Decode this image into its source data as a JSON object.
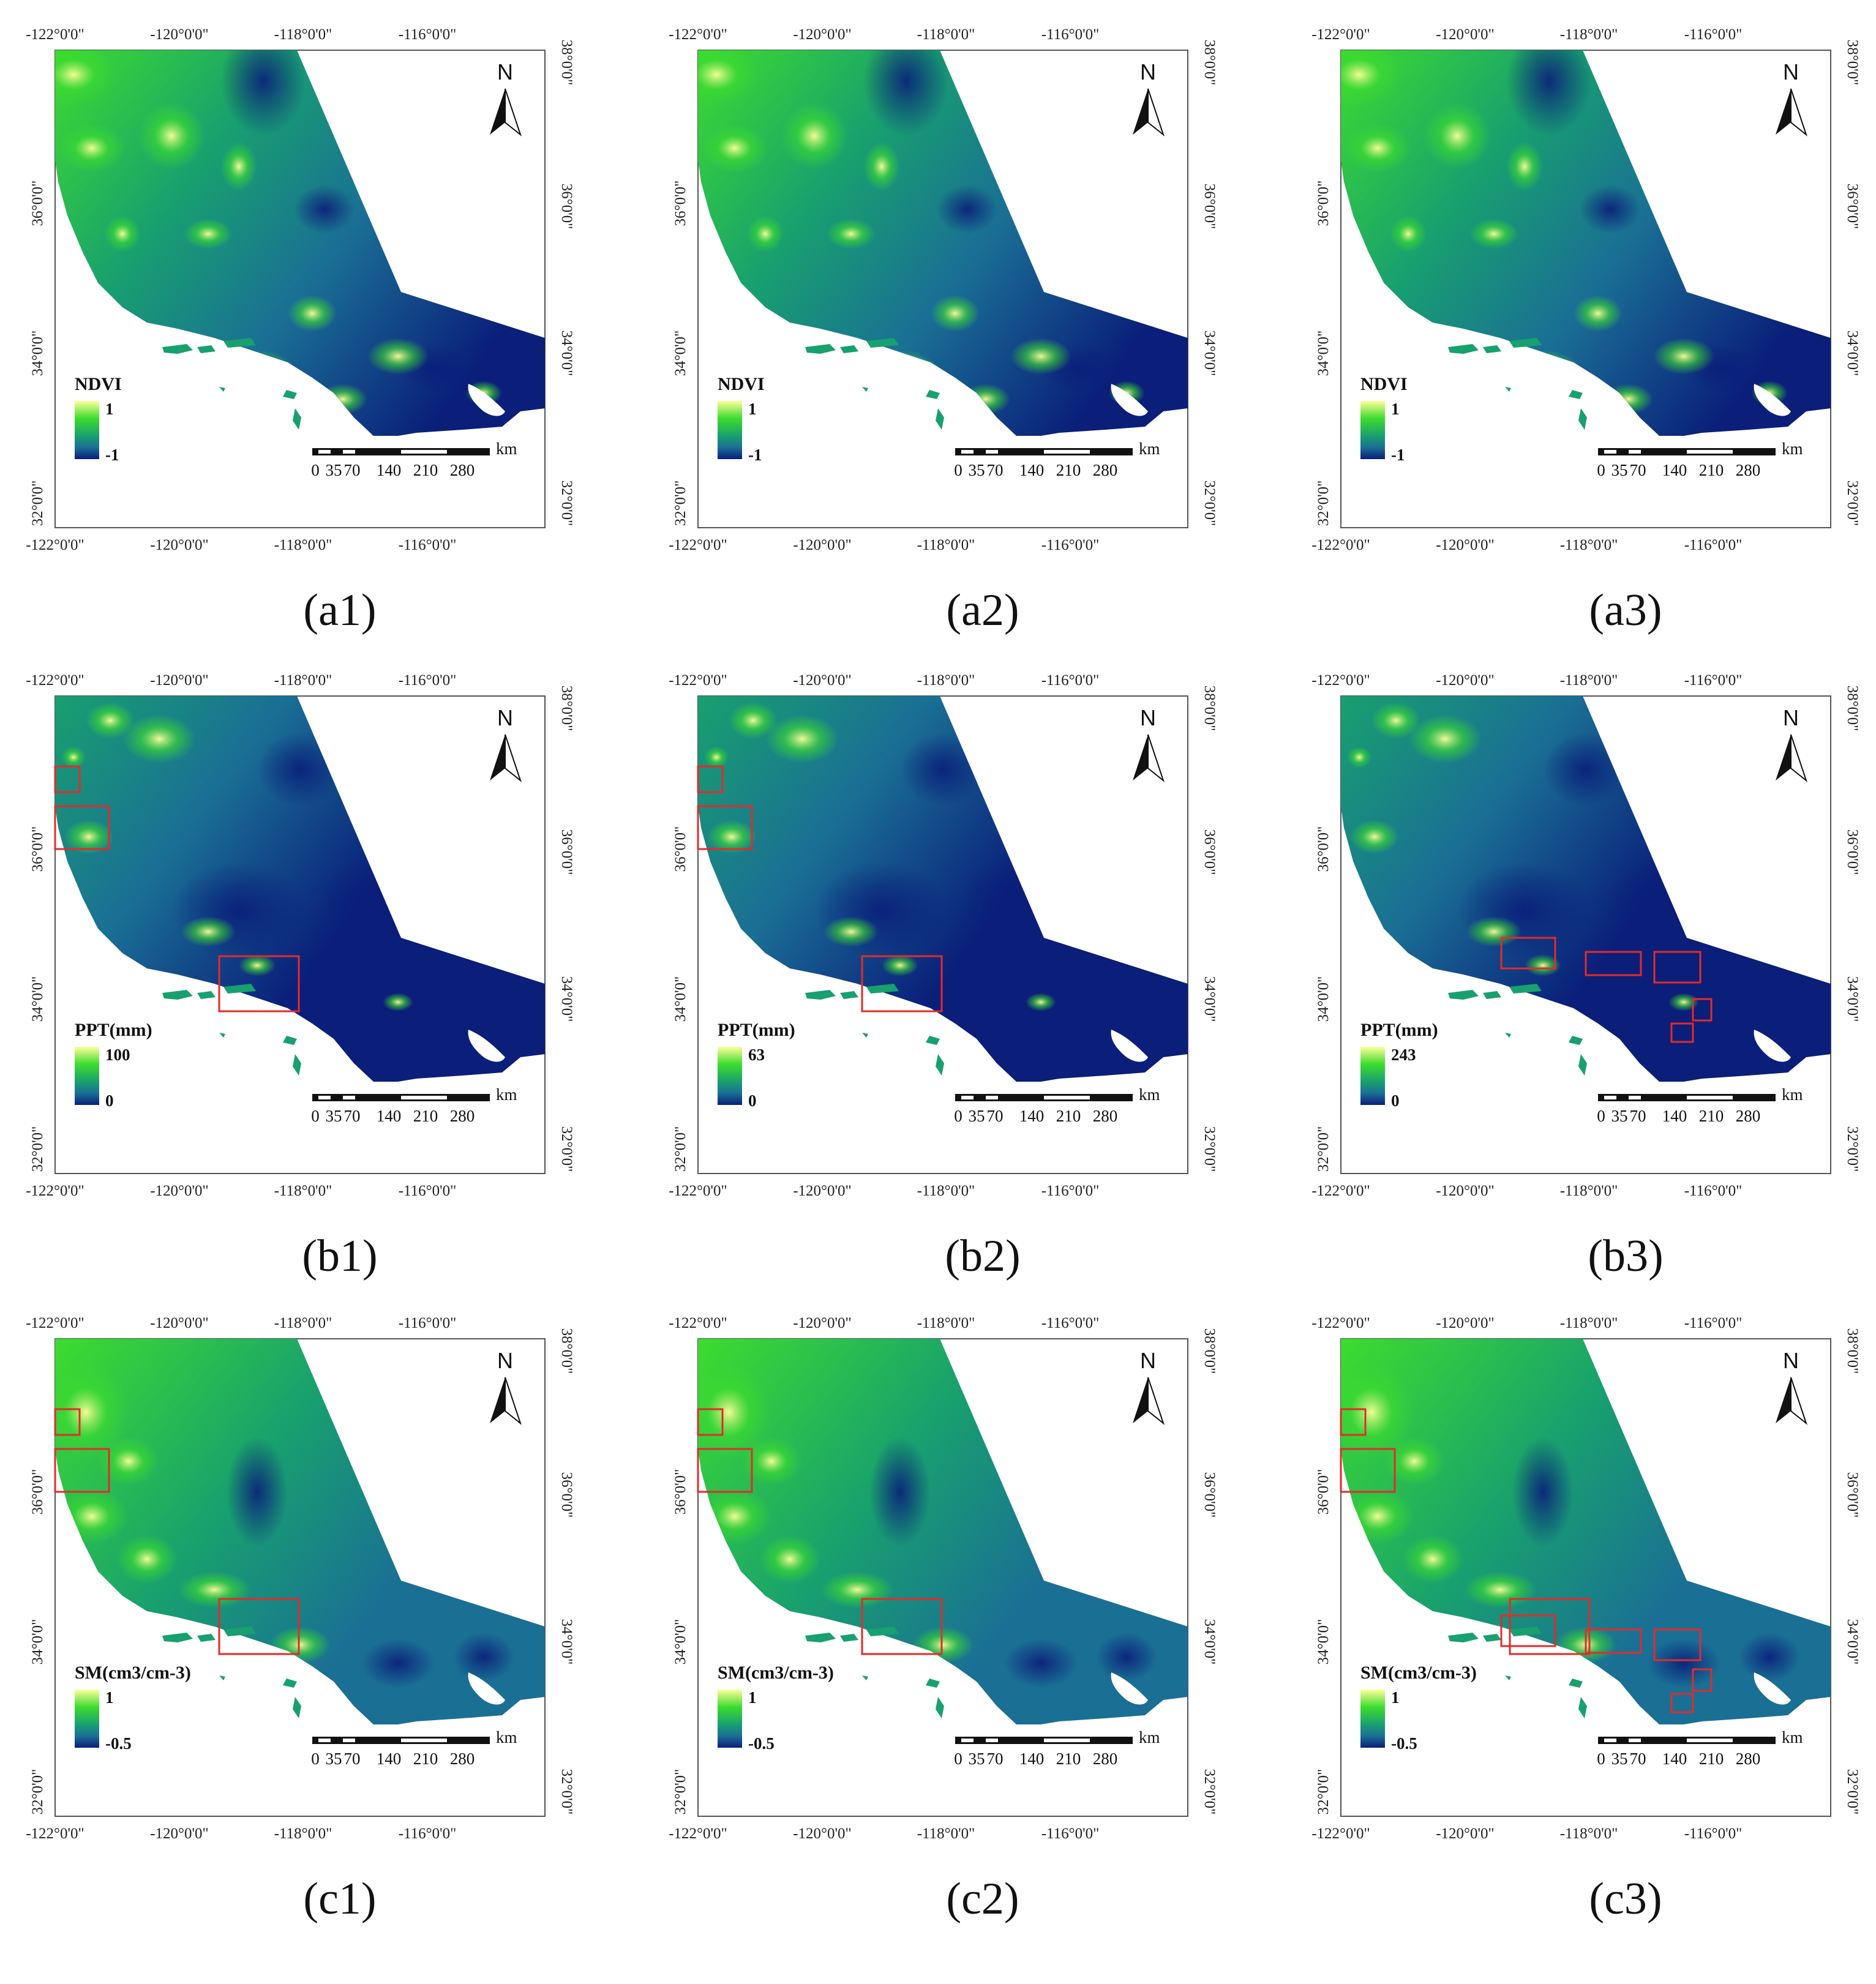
{
  "colors": {
    "ramp_high": "#ffff9a",
    "ramp_mid_high": "#3ddc2e",
    "ramp_mid": "#18a06f",
    "ramp_mid_low": "#1a6f95",
    "ramp_low": "#0a1e7a",
    "water": "#ffffff",
    "highlight_box": "#e52a2a",
    "frame": "#555555"
  },
  "axes": {
    "top_labels": [
      "-122°0'0\"",
      "-120°0'0\"",
      "-118°0'0\"",
      "-116°0'0\""
    ],
    "bottom_labels": [
      "-122°0'0\"",
      "-120°0'0\"",
      "-118°0'0\"",
      "-116°0'0\""
    ],
    "left_labels": [
      "36°0'0\"",
      "34°0'0\"",
      "32°0'0\""
    ],
    "right_labels": [
      "38°0'0\"",
      "36°0'0\"",
      "34°0'0\"",
      "32°0'0\""
    ]
  },
  "north_arrow": {
    "label": "N",
    "icon": "north-arrow-icon"
  },
  "scale_bar": {
    "unit": "km",
    "ticks": [
      "0",
      "35",
      "70",
      "140",
      "210",
      "280"
    ]
  },
  "panels": [
    {
      "caption": "(a1)",
      "variable": "NDVI",
      "legend_title": "NDVI",
      "legend_max": "1",
      "legend_min": "-1",
      "highlight_count": 0
    },
    {
      "caption": "(a2)",
      "variable": "NDVI",
      "legend_title": "NDVI",
      "legend_max": "1",
      "legend_min": "-1",
      "highlight_count": 0
    },
    {
      "caption": "(a3)",
      "variable": "NDVI",
      "legend_title": "NDVI",
      "legend_max": "1",
      "legend_min": "-1",
      "highlight_count": 0
    },
    {
      "caption": "(b1)",
      "variable": "PPT",
      "legend_title": "PPT(mm)",
      "legend_max": "100",
      "legend_min": "0",
      "highlight_count": 3
    },
    {
      "caption": "(b2)",
      "variable": "PPT",
      "legend_title": "PPT(mm)",
      "legend_max": "63",
      "legend_min": "0",
      "highlight_count": 3
    },
    {
      "caption": "(b3)",
      "variable": "PPT",
      "legend_title": "PPT(mm)",
      "legend_max": "243",
      "legend_min": "0",
      "highlight_count": 5
    },
    {
      "caption": "(c1)",
      "variable": "SM",
      "legend_title": "SM(cm3/cm-3)",
      "legend_max": "1",
      "legend_min": "-0.5",
      "highlight_count": 3
    },
    {
      "caption": "(c2)",
      "variable": "SM",
      "legend_title": "SM(cm3/cm-3)",
      "legend_max": "1",
      "legend_min": "-0.5",
      "highlight_count": 3
    },
    {
      "caption": "(c3)",
      "variable": "SM",
      "legend_title": "SM(cm3/cm-3)",
      "legend_max": "1",
      "legend_min": "-0.5",
      "highlight_count": 8
    }
  ]
}
